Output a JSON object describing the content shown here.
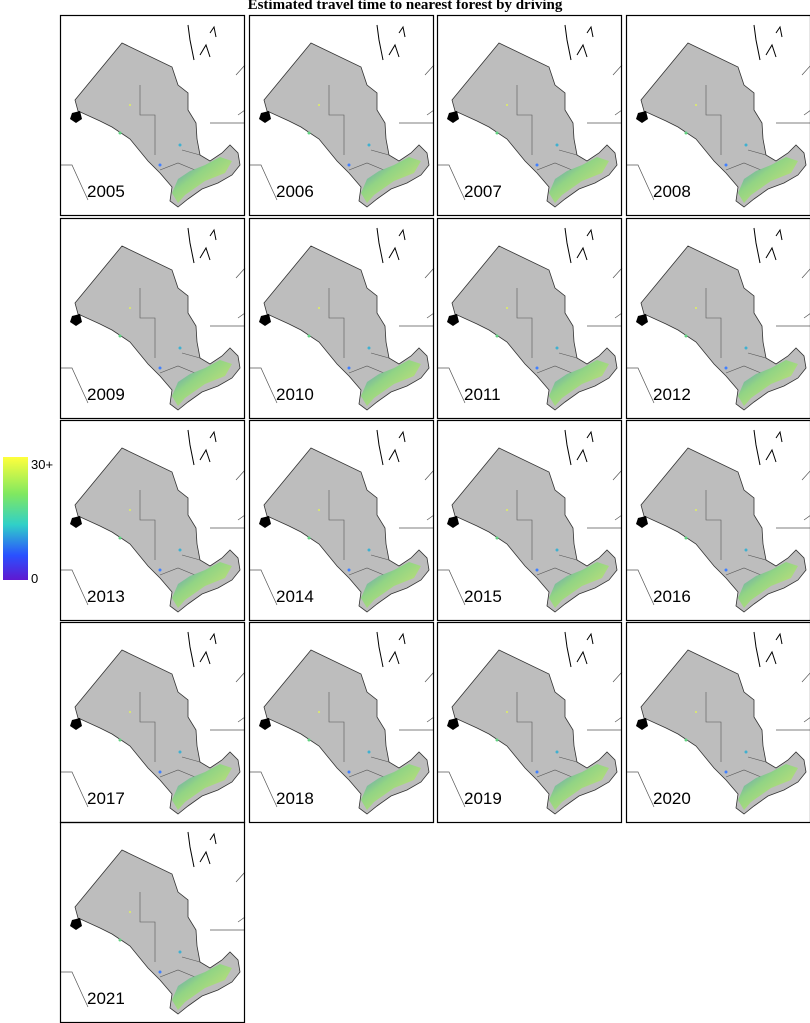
{
  "title": "Estimated travel time to nearest forest by driving",
  "colorbar": {
    "max_label": "30+",
    "min_label": "0"
  },
  "panels": [
    {
      "year": "2005"
    },
    {
      "year": "2006"
    },
    {
      "year": "2007"
    },
    {
      "year": "2008"
    },
    {
      "year": "2009"
    },
    {
      "year": "2010"
    },
    {
      "year": "2011"
    },
    {
      "year": "2012"
    },
    {
      "year": "2013"
    },
    {
      "year": "2014"
    },
    {
      "year": "2015"
    },
    {
      "year": "2016"
    },
    {
      "year": "2017"
    },
    {
      "year": "2018"
    },
    {
      "year": "2019"
    },
    {
      "year": "2020"
    },
    {
      "year": "2021"
    }
  ]
}
